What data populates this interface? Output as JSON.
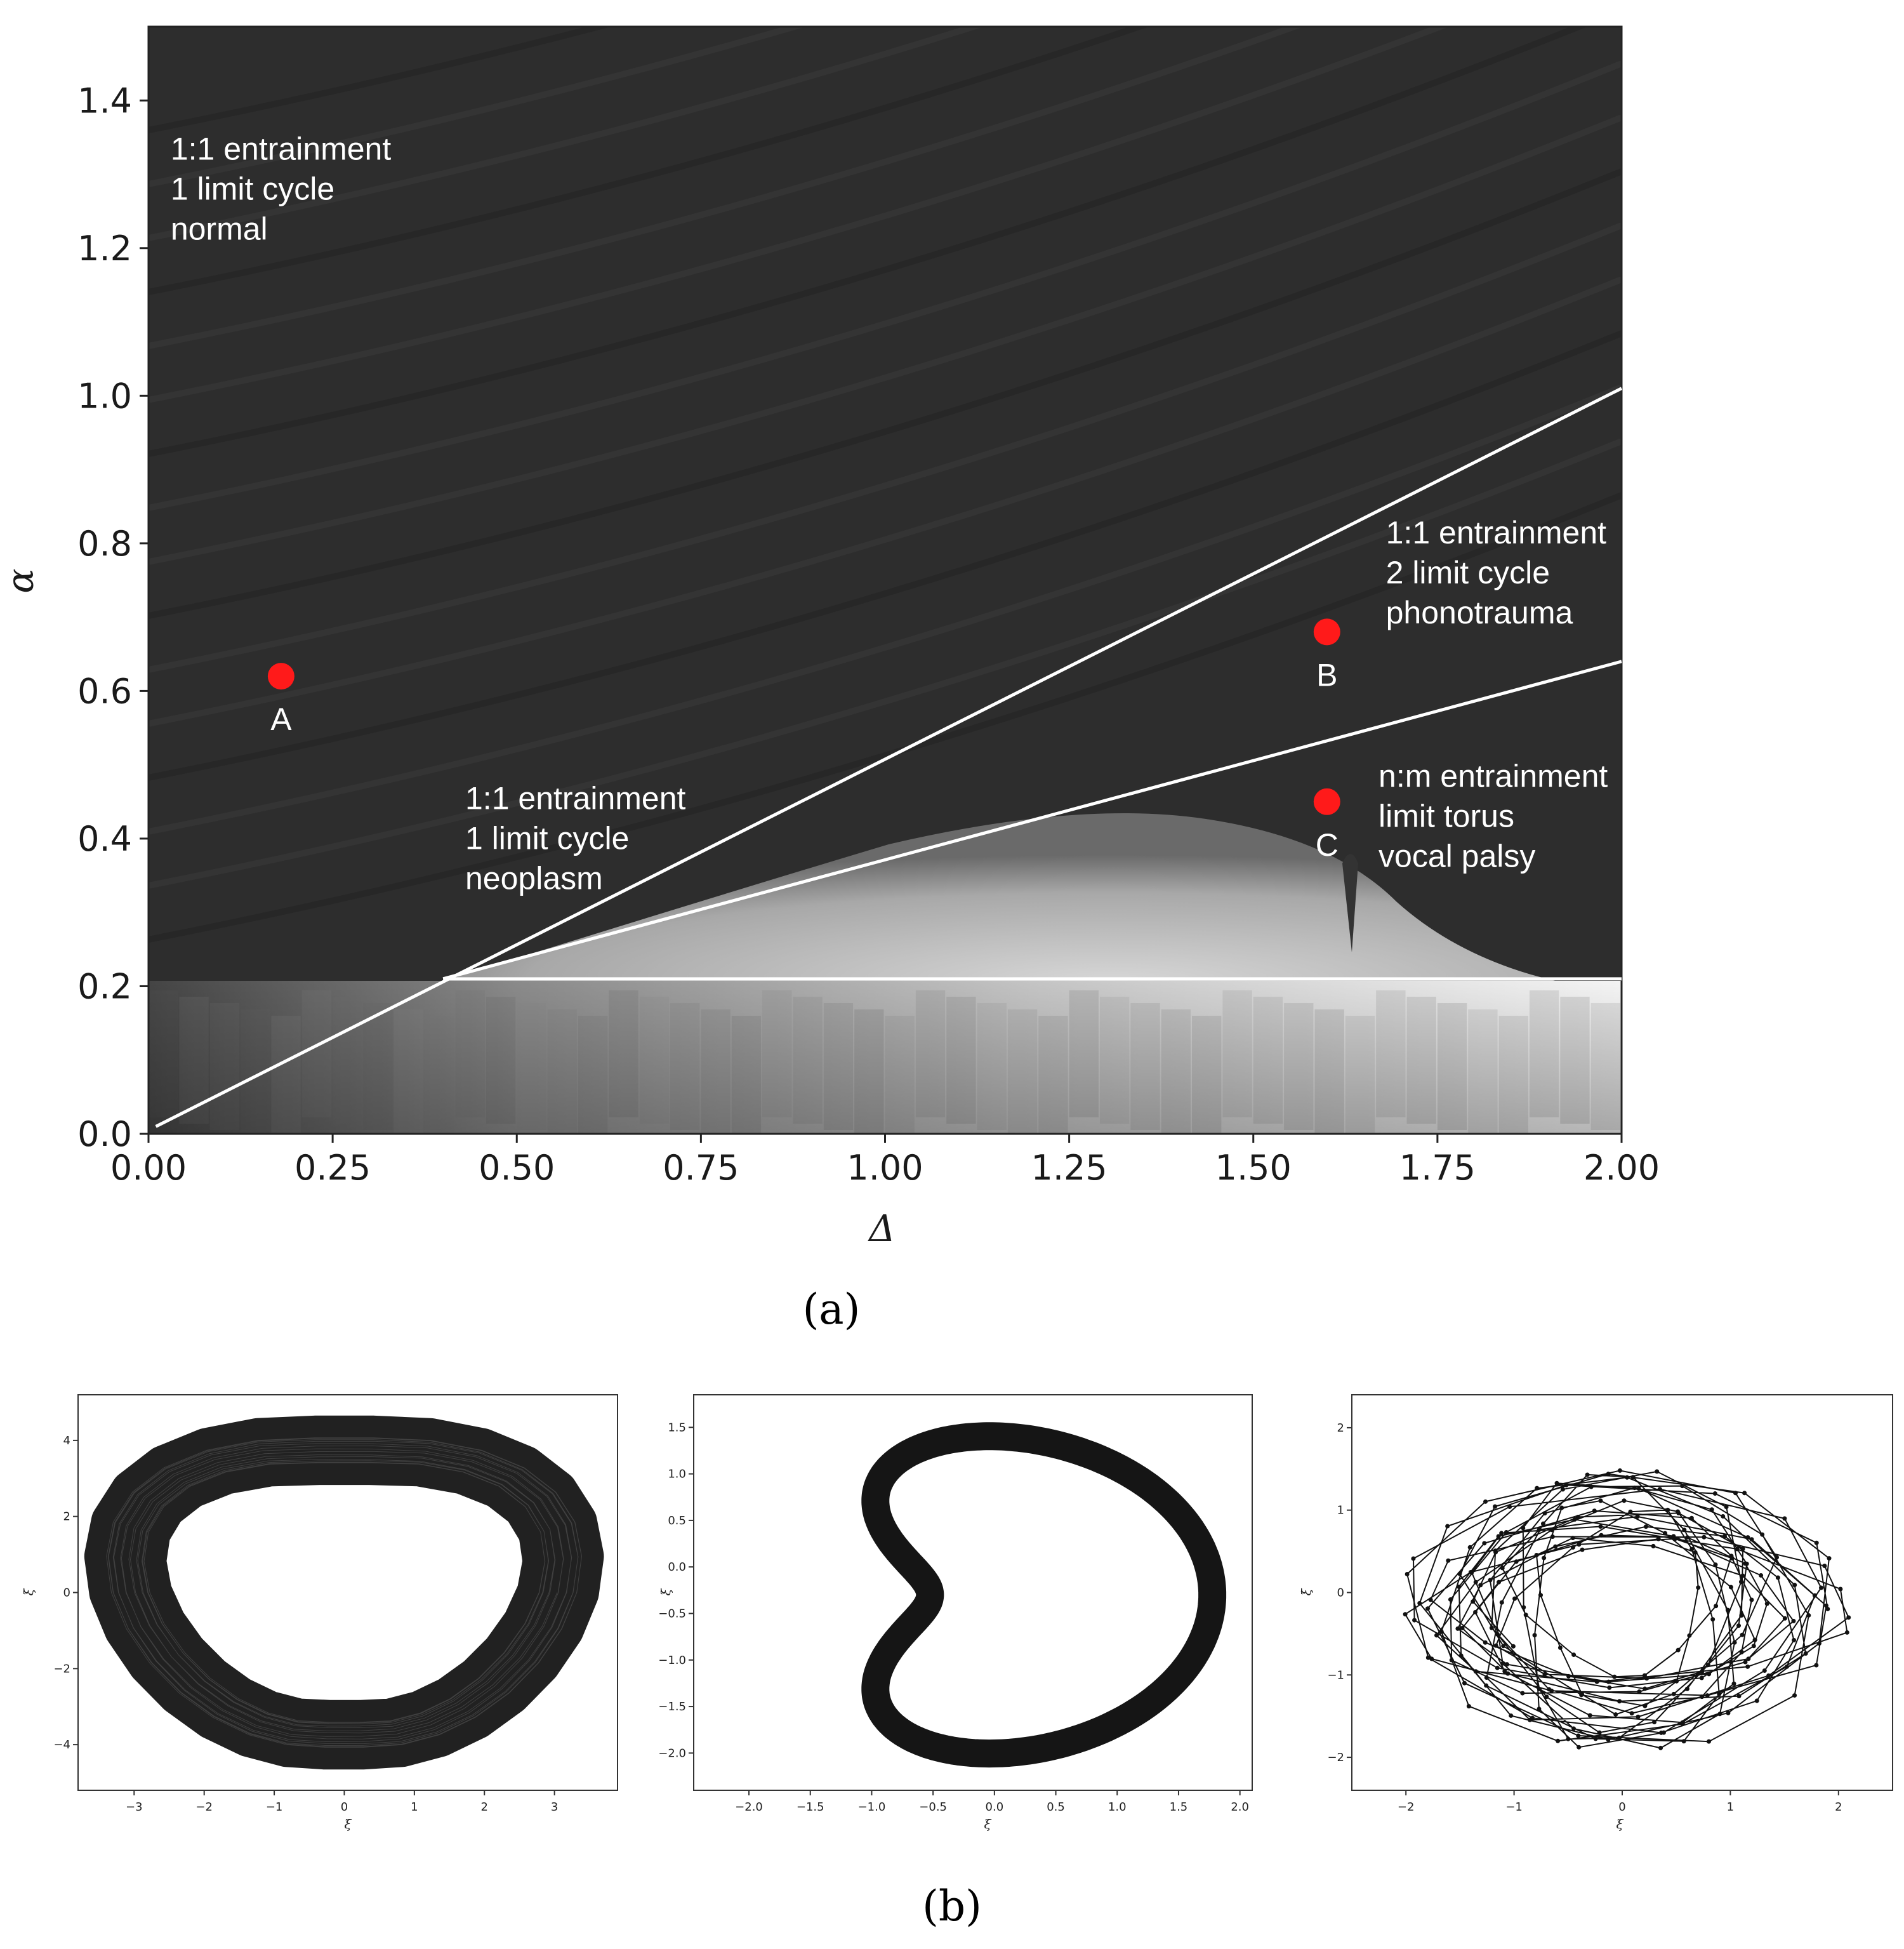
{
  "chart_data": [
    {
      "type": "heatmap",
      "panel": "(a)",
      "xlabel": "Δ",
      "ylabel": "α",
      "xlim": [
        0,
        2.0
      ],
      "ylim": [
        0,
        1.5
      ],
      "xticks": [
        "0.00",
        "0.25",
        "0.50",
        "0.75",
        "1.00",
        "1.25",
        "1.50",
        "1.75",
        "2.00"
      ],
      "yticks": [
        "0.0",
        "0.2",
        "0.4",
        "0.6",
        "0.8",
        "1.0",
        "1.2",
        "1.4"
      ],
      "boundaries": [
        {
          "x": [
            0.01,
            2.0
          ],
          "y": [
            0.01,
            1.01
          ]
        },
        {
          "x": [
            0.4,
            2.0
          ],
          "y": [
            0.21,
            0.64
          ]
        },
        {
          "x": [
            0.4,
            2.0
          ],
          "y": [
            0.21,
            0.21
          ]
        }
      ],
      "points": [
        {
          "label": "A",
          "x": 0.18,
          "y": 0.62
        },
        {
          "label": "B",
          "x": 1.6,
          "y": 0.68
        },
        {
          "label": "C",
          "x": 1.6,
          "y": 0.45
        }
      ],
      "regions": [
        {
          "lines": [
            "1:1 entrainment",
            "1 limit cycle",
            "normal"
          ],
          "x": 0.03,
          "y": 1.32
        },
        {
          "lines": [
            "1:1 entrainment",
            "2 limit cycle",
            "phonotrauma"
          ],
          "x": 1.68,
          "y": 0.8
        },
        {
          "lines": [
            "1:1 entrainment",
            "1 limit cycle",
            "neoplasm"
          ],
          "x": 0.43,
          "y": 0.44
        },
        {
          "lines": [
            "n:m entrainment",
            "limit torus",
            "vocal palsy"
          ],
          "x": 1.67,
          "y": 0.47
        }
      ],
      "colors": {
        "background": "#2d2d2d",
        "points": "#ff1a1a",
        "boundaries": "#ffffff"
      }
    },
    {
      "type": "line",
      "panel": "(b) left",
      "xlabel": "ξ",
      "ylabel": "ξ̇",
      "xlim": [
        -3.8,
        3.9
      ],
      "ylim": [
        -5.2,
        5.2
      ],
      "xticks": [
        "−3",
        "−2",
        "−1",
        "0",
        "1",
        "2",
        "3"
      ],
      "yticks": [
        "−4",
        "−2",
        "0",
        "2",
        "4"
      ]
    },
    {
      "type": "line",
      "panel": "(b) middle",
      "xlabel": "ξ",
      "ylabel": "ξ̇",
      "xlim": [
        -2.45,
        2.1
      ],
      "ylim": [
        -2.4,
        1.85
      ],
      "xticks": [
        "−2.0",
        "−1.5",
        "−1.0",
        "−0.5",
        "0.0",
        "0.5",
        "1.0",
        "1.5",
        "2.0"
      ],
      "yticks": [
        "−2.0",
        "−1.5",
        "−1.0",
        "−0.5",
        "0.0",
        "0.5",
        "1.0",
        "1.5"
      ]
    },
    {
      "type": "line",
      "panel": "(b) right",
      "xlabel": "ξ",
      "ylabel": "ξ̇",
      "xlim": [
        -2.5,
        2.5
      ],
      "ylim": [
        -2.4,
        2.4
      ],
      "xticks": [
        "−2",
        "−1",
        "0",
        "1",
        "2"
      ],
      "yticks": [
        "−2",
        "−1",
        "0",
        "1",
        "2"
      ]
    }
  ],
  "captions": {
    "a": "(a)",
    "b": "(b)"
  }
}
